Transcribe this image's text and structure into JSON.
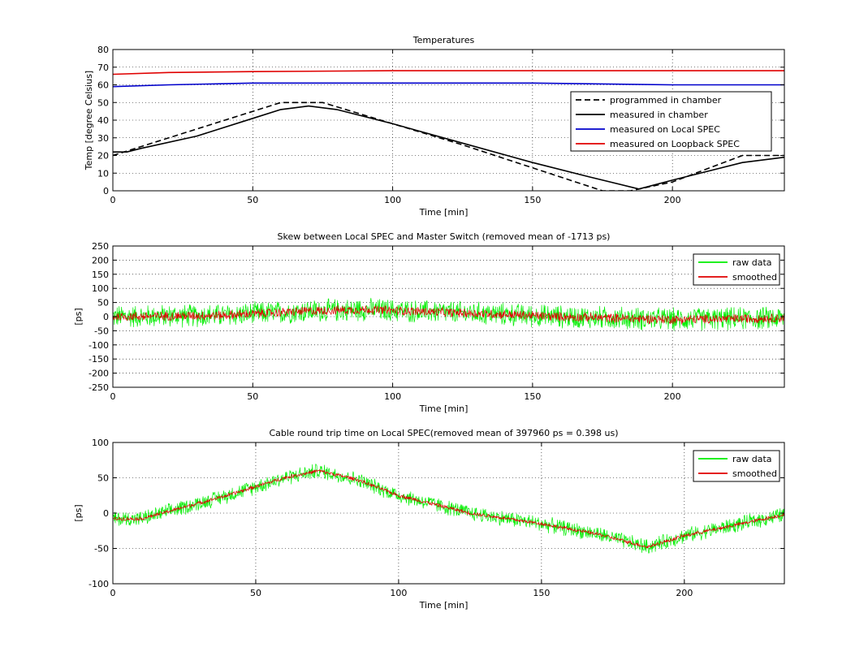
{
  "chart_data": [
    {
      "type": "line",
      "title": "Temperatures",
      "xlabel": "Time [min]",
      "ylabel": "Temp [degree Celsius]",
      "xlim": [
        0,
        240
      ],
      "ylim": [
        0,
        80
      ],
      "xticks": [
        0,
        50,
        100,
        150,
        200
      ],
      "yticks": [
        0,
        10,
        20,
        30,
        40,
        50,
        60,
        70,
        80
      ],
      "grid": true,
      "legend_position": "right",
      "series": [
        {
          "name": "programmed in chamber",
          "color": "#000000",
          "style": "dashed",
          "x": [
            0,
            10,
            60,
            75,
            100,
            125,
            175,
            185,
            200,
            225,
            240
          ],
          "y": [
            20,
            25,
            50,
            50,
            38,
            26,
            0,
            0,
            5,
            20,
            20
          ]
        },
        {
          "name": "measured in chamber",
          "color": "#000000",
          "style": "solid",
          "x": [
            0,
            5,
            10,
            30,
            50,
            60,
            70,
            80,
            100,
            125,
            150,
            170,
            188,
            200,
            225,
            240
          ],
          "y": [
            22,
            22,
            24,
            31,
            41,
            46,
            48,
            46,
            38,
            27,
            16,
            8,
            1,
            6,
            16,
            19
          ]
        },
        {
          "name": "measured on Local SPEC",
          "color": "#0000cc",
          "style": "solid",
          "x": [
            0,
            20,
            50,
            100,
            150,
            200,
            240
          ],
          "y": [
            59,
            60,
            61,
            61,
            61,
            60,
            60
          ]
        },
        {
          "name": "measured on Loopback SPEC",
          "color": "#e00000",
          "style": "solid",
          "x": [
            0,
            20,
            50,
            100,
            150,
            200,
            240
          ],
          "y": [
            66,
            67,
            67.5,
            68,
            68,
            68,
            68
          ]
        }
      ]
    },
    {
      "type": "line",
      "title": "Skew between Local SPEC and Master Switch (removed mean of -1713 ps)",
      "xlabel": "Time [min]",
      "ylabel": "[ps]",
      "xlim": [
        0,
        240
      ],
      "ylim": [
        -250,
        250
      ],
      "xticks": [
        0,
        50,
        100,
        150,
        200
      ],
      "yticks": [
        -250,
        -200,
        -150,
        -100,
        -50,
        0,
        50,
        100,
        150,
        200,
        250
      ],
      "grid": true,
      "legend_position": "top-right",
      "series": [
        {
          "name": "raw data",
          "color": "#00ee00",
          "noise_amplitude": 45,
          "x": [
            0,
            40,
            70,
            90,
            120,
            160,
            200,
            240
          ],
          "y": [
            0,
            5,
            20,
            25,
            15,
            0,
            -10,
            -5
          ]
        },
        {
          "name": "smoothed",
          "color": "#e00000",
          "noise_amplitude": 18,
          "x": [
            0,
            40,
            70,
            90,
            120,
            160,
            200,
            240
          ],
          "y": [
            0,
            5,
            20,
            25,
            15,
            0,
            -10,
            -5
          ]
        }
      ]
    },
    {
      "type": "line",
      "title": "Cable round trip time on Local SPEC(removed mean of 397960 ps = 0.398 us)",
      "xlabel": "Time [min]",
      "ylabel": "[ps]",
      "xlim": [
        0,
        235
      ],
      "ylim": [
        -100,
        100
      ],
      "xticks": [
        0,
        50,
        100,
        150,
        200
      ],
      "yticks": [
        -100,
        -50,
        0,
        50,
        100
      ],
      "grid": true,
      "legend_position": "top-right",
      "series": [
        {
          "name": "raw data",
          "color": "#00ee00",
          "noise_amplitude": 12,
          "x": [
            0,
            10,
            40,
            60,
            72,
            85,
            100,
            125,
            150,
            170,
            187,
            200,
            220,
            235
          ],
          "y": [
            -8,
            -8,
            25,
            50,
            60,
            48,
            25,
            0,
            -15,
            -30,
            -48,
            -32,
            -15,
            -2
          ]
        },
        {
          "name": "smoothed",
          "color": "#e00000",
          "noise_amplitude": 3,
          "x": [
            0,
            10,
            40,
            60,
            72,
            85,
            100,
            125,
            150,
            170,
            187,
            200,
            220,
            235
          ],
          "y": [
            -8,
            -8,
            25,
            50,
            60,
            48,
            25,
            0,
            -15,
            -30,
            -48,
            -32,
            -15,
            -2
          ]
        }
      ]
    }
  ]
}
